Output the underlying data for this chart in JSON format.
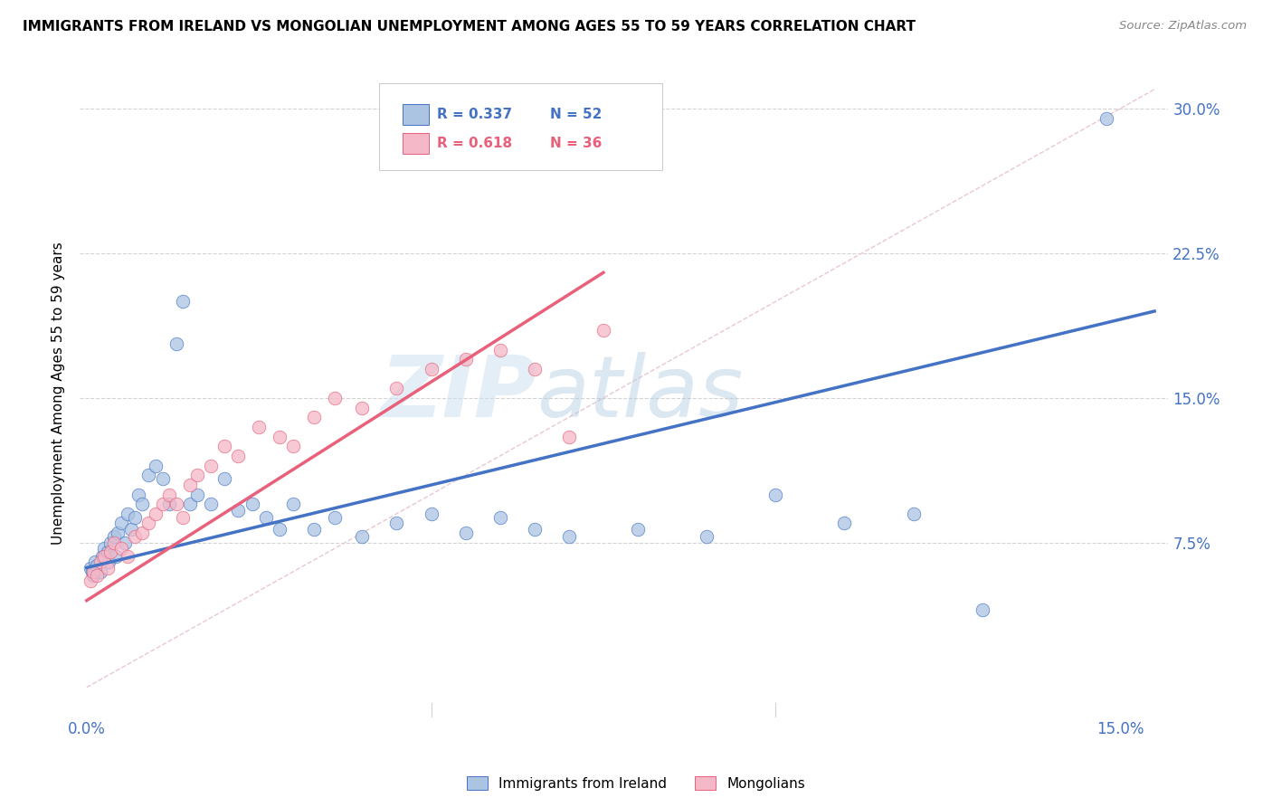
{
  "title": "IMMIGRANTS FROM IRELAND VS MONGOLIAN UNEMPLOYMENT AMONG AGES 55 TO 59 YEARS CORRELATION CHART",
  "source": "Source: ZipAtlas.com",
  "ylabel_label": "Unemployment Among Ages 55 to 59 years",
  "xlim": [
    -0.001,
    0.157
  ],
  "ylim": [
    -0.015,
    0.32
  ],
  "legend_r_blue": "R = 0.337",
  "legend_n_blue": "N = 52",
  "legend_r_pink": "R = 0.618",
  "legend_n_pink": "N = 36",
  "blue_color": "#aac4e2",
  "blue_line_color": "#4472c4",
  "pink_color": "#f5b8c8",
  "pink_line_color": "#e8607a",
  "watermark_zip": "ZIP",
  "watermark_atlas": "atlas",
  "blue_line_x0": 0.0,
  "blue_line_y0": 0.062,
  "blue_line_x1": 0.155,
  "blue_line_y1": 0.195,
  "pink_line_x0": 0.0,
  "pink_line_y0": 0.045,
  "pink_line_x1": 0.075,
  "pink_line_y1": 0.215,
  "ireland_x": [
    0.0005,
    0.0008,
    0.001,
    0.0012,
    0.0015,
    0.002,
    0.0022,
    0.0025,
    0.003,
    0.0032,
    0.0035,
    0.004,
    0.0042,
    0.0045,
    0.005,
    0.0055,
    0.006,
    0.0065,
    0.007,
    0.0075,
    0.008,
    0.009,
    0.01,
    0.011,
    0.012,
    0.013,
    0.014,
    0.015,
    0.016,
    0.018,
    0.02,
    0.022,
    0.024,
    0.026,
    0.028,
    0.03,
    0.033,
    0.036,
    0.04,
    0.045,
    0.05,
    0.055,
    0.06,
    0.065,
    0.07,
    0.08,
    0.09,
    0.1,
    0.11,
    0.12,
    0.13,
    0.148
  ],
  "ireland_y": [
    0.062,
    0.06,
    0.058,
    0.065,
    0.063,
    0.06,
    0.068,
    0.072,
    0.07,
    0.065,
    0.075,
    0.078,
    0.068,
    0.08,
    0.085,
    0.075,
    0.09,
    0.082,
    0.088,
    0.1,
    0.095,
    0.11,
    0.115,
    0.108,
    0.095,
    0.178,
    0.2,
    0.095,
    0.1,
    0.095,
    0.108,
    0.092,
    0.095,
    0.088,
    0.082,
    0.095,
    0.082,
    0.088,
    0.078,
    0.085,
    0.09,
    0.08,
    0.088,
    0.082,
    0.078,
    0.082,
    0.078,
    0.1,
    0.085,
    0.09,
    0.04,
    0.295
  ],
  "mongolia_x": [
    0.0005,
    0.001,
    0.0015,
    0.002,
    0.0025,
    0.003,
    0.0035,
    0.004,
    0.005,
    0.006,
    0.007,
    0.008,
    0.009,
    0.01,
    0.011,
    0.012,
    0.013,
    0.014,
    0.015,
    0.016,
    0.018,
    0.02,
    0.022,
    0.025,
    0.028,
    0.03,
    0.033,
    0.036,
    0.04,
    0.045,
    0.05,
    0.055,
    0.06,
    0.065,
    0.07,
    0.075
  ],
  "mongolia_y": [
    0.055,
    0.06,
    0.058,
    0.065,
    0.068,
    0.062,
    0.07,
    0.075,
    0.072,
    0.068,
    0.078,
    0.08,
    0.085,
    0.09,
    0.095,
    0.1,
    0.095,
    0.088,
    0.105,
    0.11,
    0.115,
    0.125,
    0.12,
    0.135,
    0.13,
    0.125,
    0.14,
    0.15,
    0.145,
    0.155,
    0.165,
    0.17,
    0.175,
    0.165,
    0.13,
    0.185
  ]
}
